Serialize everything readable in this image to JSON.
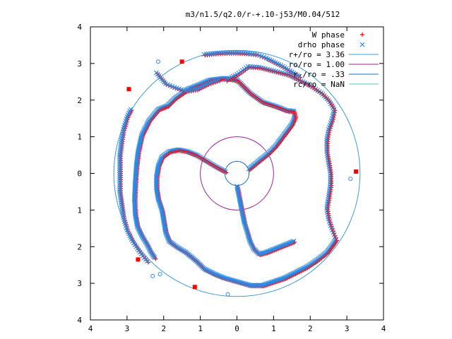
{
  "chart_data": {
    "type": "scatter",
    "title": "m3/n1.5/q2.0/r-+.10-j53/M0.04/512",
    "xlim": [
      -4,
      4
    ],
    "ylim": [
      -4,
      4
    ],
    "x_tick_values": [
      -4,
      -3,
      -2,
      -1,
      0,
      1,
      2,
      3,
      4
    ],
    "x_tick_labels": [
      "4",
      "3",
      "2",
      "1",
      "0",
      "1",
      "2",
      "3",
      "4"
    ],
    "y_tick_values": [
      4,
      3,
      2,
      1,
      0,
      -1,
      -2,
      -3,
      -4
    ],
    "y_tick_labels": [
      "4",
      "3",
      "2",
      "1",
      "0",
      "1",
      "2",
      "3",
      "4"
    ],
    "grid": false,
    "legend_position": "top-right",
    "colors": {
      "w_phase": "#ff0000",
      "drho_phase": "#2a8ae8",
      "r_plus": "#3a9bd6",
      "r_o": "#a020a0",
      "r_minus": "#1e6fc8",
      "r_c": "#40d0d0"
    },
    "series": [
      {
        "name": "W phase",
        "kind": "points",
        "marker": "plus",
        "color_key": "w_phase"
      },
      {
        "name": "drho phase",
        "kind": "points",
        "marker": "cross",
        "color_key": "drho_phase"
      },
      {
        "name": "r+/ro = 3.36",
        "kind": "circle",
        "radius": 3.36,
        "color_key": "r_plus"
      },
      {
        "name": "ro/ro = 1.00",
        "kind": "circle",
        "radius": 1.0,
        "color_key": "r_o"
      },
      {
        "name": "r-/ro = .33",
        "kind": "circle",
        "radius": 0.33,
        "color_key": "r_minus"
      },
      {
        "name": "rc/ro = NaN",
        "kind": "circle",
        "radius": null,
        "color_key": "r_c"
      }
    ],
    "spiral_arms": [
      {
        "name": "inner",
        "points": [
          [
            0.0,
            -0.35
          ],
          [
            0.05,
            -0.6
          ],
          [
            0.1,
            -0.85
          ],
          [
            0.15,
            -1.1
          ],
          [
            0.2,
            -1.35
          ],
          [
            0.28,
            -1.6
          ],
          [
            0.35,
            -1.85
          ],
          [
            0.45,
            -2.05
          ],
          [
            0.6,
            -2.2
          ],
          [
            0.8,
            -2.15
          ],
          [
            1.05,
            -2.05
          ],
          [
            1.3,
            -1.95
          ],
          [
            1.55,
            -1.85
          ]
        ]
      },
      {
        "name": "middle",
        "points": [
          [
            0.32,
            0.12
          ],
          [
            0.6,
            0.35
          ],
          [
            0.85,
            0.55
          ],
          [
            1.05,
            0.75
          ],
          [
            1.2,
            0.95
          ],
          [
            1.35,
            1.15
          ],
          [
            1.5,
            1.35
          ],
          [
            1.58,
            1.55
          ],
          [
            1.55,
            1.7
          ],
          [
            1.35,
            1.72
          ],
          [
            1.1,
            1.82
          ],
          [
            0.7,
            1.95
          ],
          [
            0.35,
            2.2
          ],
          [
            0.0,
            2.55
          ],
          [
            -0.35,
            2.6
          ],
          [
            -0.75,
            2.55
          ],
          [
            -1.1,
            2.4
          ],
          [
            -1.35,
            2.3
          ],
          [
            -1.7,
            2.05
          ],
          [
            -1.9,
            1.85
          ],
          [
            -2.15,
            1.75
          ],
          [
            -2.4,
            1.45
          ],
          [
            -2.6,
            1.05
          ],
          [
            -2.7,
            0.6
          ],
          [
            -2.75,
            0.2
          ],
          [
            -2.78,
            -0.25
          ],
          [
            -2.8,
            -0.7
          ],
          [
            -2.78,
            -1.1
          ],
          [
            -2.72,
            -1.45
          ],
          [
            -2.6,
            -1.7
          ],
          [
            -2.45,
            -1.95
          ],
          [
            -2.35,
            -2.15
          ],
          [
            -2.25,
            -2.3
          ]
        ]
      },
      {
        "name": "left-inner",
        "points": [
          [
            -0.32,
            0.05
          ],
          [
            -0.6,
            0.2
          ],
          [
            -0.85,
            0.35
          ],
          [
            -1.1,
            0.5
          ],
          [
            -1.35,
            0.6
          ],
          [
            -1.6,
            0.65
          ],
          [
            -1.85,
            0.6
          ],
          [
            -2.05,
            0.45
          ],
          [
            -2.15,
            0.2
          ],
          [
            -2.2,
            -0.1
          ],
          [
            -2.2,
            -0.4
          ],
          [
            -2.15,
            -0.7
          ],
          [
            -2.05,
            -1.0
          ],
          [
            -2.0,
            -1.3
          ],
          [
            -1.95,
            -1.6
          ],
          [
            -1.85,
            -1.85
          ],
          [
            -1.65,
            -2.0
          ],
          [
            -1.4,
            -2.15
          ],
          [
            -1.1,
            -2.4
          ],
          [
            -0.9,
            -2.6
          ],
          [
            -0.6,
            -2.75
          ],
          [
            -0.35,
            -2.85
          ],
          [
            0.0,
            -2.95
          ],
          [
            0.35,
            -3.05
          ],
          [
            0.7,
            -3.05
          ],
          [
            1.0,
            -2.95
          ],
          [
            1.3,
            -2.85
          ],
          [
            1.6,
            -2.7
          ],
          [
            1.9,
            -2.55
          ],
          [
            2.2,
            -2.35
          ],
          [
            2.45,
            -2.15
          ],
          [
            2.6,
            -1.95
          ],
          [
            2.7,
            -1.8
          ]
        ]
      },
      {
        "name": "right-outer",
        "points": [
          [
            2.7,
            -1.8
          ],
          [
            2.6,
            -1.55
          ],
          [
            2.5,
            -1.25
          ],
          [
            2.45,
            -0.95
          ],
          [
            2.5,
            -0.65
          ],
          [
            2.55,
            -0.3
          ],
          [
            2.55,
            0.0
          ],
          [
            2.5,
            0.3
          ],
          [
            2.45,
            0.6
          ],
          [
            2.45,
            0.9
          ],
          [
            2.5,
            1.2
          ],
          [
            2.6,
            1.5
          ],
          [
            2.65,
            1.75
          ],
          [
            2.5,
            2.0
          ],
          [
            2.3,
            2.2
          ],
          [
            2.0,
            2.4
          ],
          [
            1.7,
            2.55
          ],
          [
            1.4,
            2.7
          ],
          [
            1.0,
            2.8
          ],
          [
            0.6,
            2.9
          ],
          [
            0.3,
            2.92
          ],
          [
            0.0,
            2.7
          ],
          [
            -0.3,
            2.55
          ]
        ]
      },
      {
        "name": "outer-top",
        "points": [
          [
            -0.9,
            3.25
          ],
          [
            -0.6,
            3.28
          ],
          [
            -0.3,
            3.3
          ],
          [
            0.0,
            3.3
          ],
          [
            0.3,
            3.28
          ],
          [
            0.55,
            3.25
          ],
          [
            0.8,
            3.15
          ],
          [
            1.0,
            3.05
          ],
          [
            1.2,
            2.95
          ],
          [
            1.45,
            2.8
          ],
          [
            1.7,
            2.65
          ]
        ]
      },
      {
        "name": "outer-left",
        "points": [
          [
            -2.9,
            1.75
          ],
          [
            -3.0,
            1.55
          ],
          [
            -3.1,
            1.2
          ],
          [
            -3.15,
            0.9
          ],
          [
            -3.2,
            0.5
          ],
          [
            -3.2,
            0.2
          ],
          [
            -3.2,
            -0.2
          ],
          [
            -3.2,
            -0.5
          ],
          [
            -3.15,
            -0.85
          ],
          [
            -3.1,
            -1.2
          ],
          [
            -3.0,
            -1.55
          ],
          [
            -2.85,
            -1.85
          ],
          [
            -2.65,
            -2.15
          ],
          [
            -2.45,
            -2.4
          ]
        ]
      },
      {
        "name": "outer-left-upper",
        "points": [
          [
            -2.2,
            2.75
          ],
          [
            -1.95,
            2.45
          ],
          [
            -1.7,
            2.35
          ],
          [
            -1.4,
            2.25
          ],
          [
            -1.1,
            2.3
          ],
          [
            -0.8,
            2.45
          ],
          [
            -0.5,
            2.55
          ]
        ]
      }
    ],
    "stray_points": [
      [
        -2.7,
        -2.35
      ],
      [
        -2.3,
        -2.8
      ],
      [
        -1.15,
        -3.1
      ],
      [
        -0.25,
        -3.3
      ],
      [
        3.25,
        0.05
      ],
      [
        3.1,
        -0.15
      ],
      [
        -2.95,
        2.3
      ],
      [
        -2.15,
        3.05
      ],
      [
        -1.5,
        3.05
      ],
      [
        -2.1,
        -2.75
      ]
    ]
  }
}
